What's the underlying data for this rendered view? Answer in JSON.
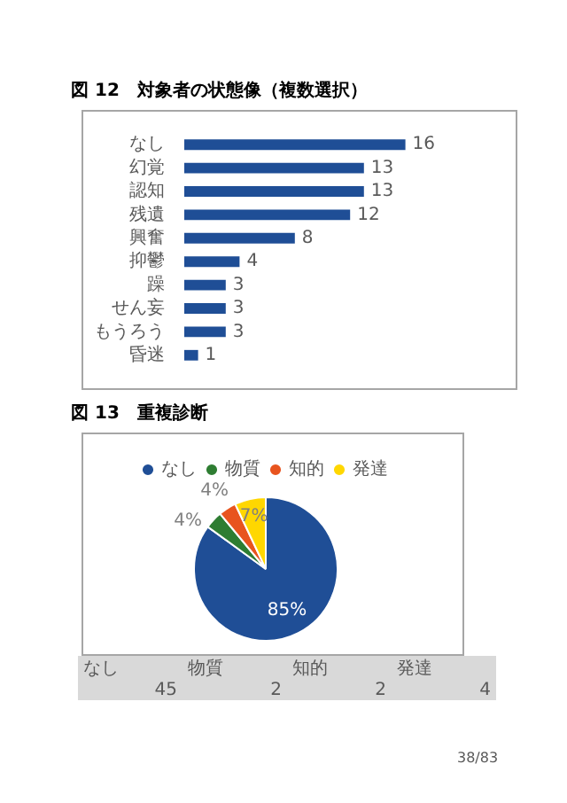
{
  "chart_data": [
    {
      "type": "bar",
      "orientation": "horizontal",
      "title": "図 12　対象者の状態像（複数選択）",
      "categories": [
        "なし",
        "幻覚",
        "認知",
        "残遺",
        "興奮",
        "抑鬱",
        "躁",
        "せん妄",
        "もうろう",
        "昏迷"
      ],
      "values": [
        16,
        13,
        13,
        12,
        8,
        4,
        3,
        3,
        3,
        1
      ],
      "color": "#1f4e96",
      "data_labels": true,
      "legend": false
    },
    {
      "type": "pie",
      "title": "図 13　重複診断",
      "categories": [
        "なし",
        "物質",
        "知的",
        "発達"
      ],
      "values": [
        85,
        4,
        4,
        7
      ],
      "colors": [
        "#1f4e96",
        "#2e7d32",
        "#e8541e",
        "#ffd700"
      ],
      "value_labels": [
        "85%",
        "4%",
        "4%",
        "7%"
      ],
      "legend": "top",
      "annotations": [
        "45",
        "2",
        "2",
        "4",
        "38/83"
      ]
    }
  ]
}
